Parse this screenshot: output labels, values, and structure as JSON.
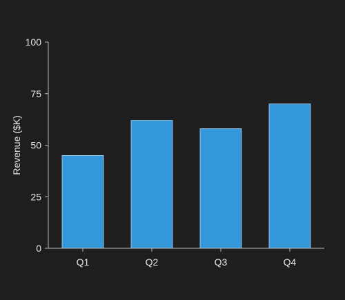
{
  "colors": {
    "background": "#1e1e1e",
    "bar": "#3498db",
    "bar_stroke": "#a8d4f5",
    "axis": "#bbbbbb",
    "text": "#e6e6e6"
  },
  "chart_data": {
    "type": "bar",
    "categories": [
      "Q1",
      "Q2",
      "Q3",
      "Q4"
    ],
    "values": [
      45,
      62,
      58,
      70
    ],
    "ylabel": "Revenue ($K)",
    "xlabel": "",
    "ylim": [
      0,
      100
    ],
    "yticks": [
      0,
      25,
      50,
      75,
      100
    ],
    "grid": false,
    "legend": "none"
  }
}
